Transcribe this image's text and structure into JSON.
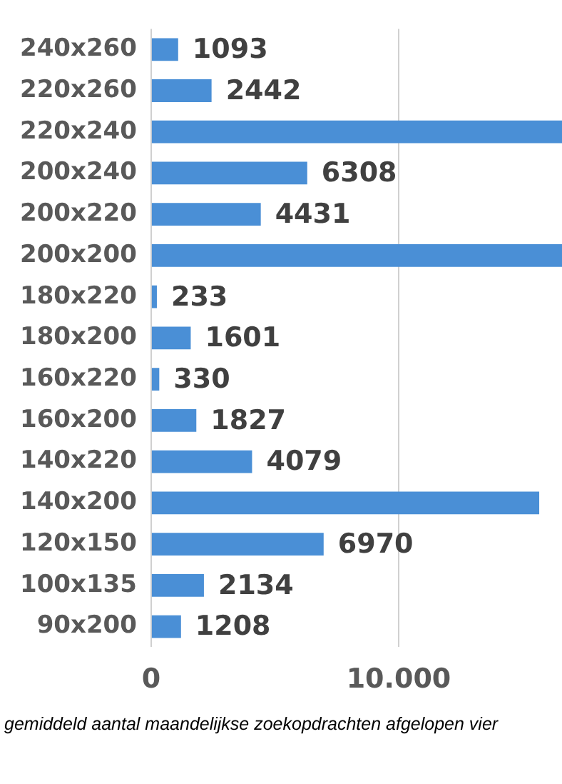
{
  "chart_data": {
    "type": "bar",
    "orientation": "horizontal",
    "categories": [
      "240x260",
      "220x260",
      "220x240",
      "200x240",
      "200x220",
      "200x200",
      "180x220",
      "180x200",
      "160x220",
      "160x200",
      "140x220",
      "140x200",
      "120x150",
      "100x135",
      "90x200"
    ],
    "values": [
      1093,
      2442,
      16600,
      6308,
      4431,
      16600,
      233,
      1601,
      330,
      1827,
      4079,
      15680,
      6970,
      2134,
      1208
    ],
    "value_labels": [
      "1093",
      "2442",
      null,
      "6308",
      "4431",
      null,
      "233",
      "1601",
      "330",
      "1827",
      "4079",
      null,
      "6970",
      "2134",
      "1208"
    ],
    "color": "#4a8fd6",
    "xlim": [
      0,
      16600
    ],
    "xticks": [
      0,
      {
        "value": 10000,
        "label": "10.000"
      }
    ],
    "grid": "x",
    "annotations": [
      "gemiddeld aantal maandelijkse zoekopdrachten afgelopen vier"
    ]
  }
}
